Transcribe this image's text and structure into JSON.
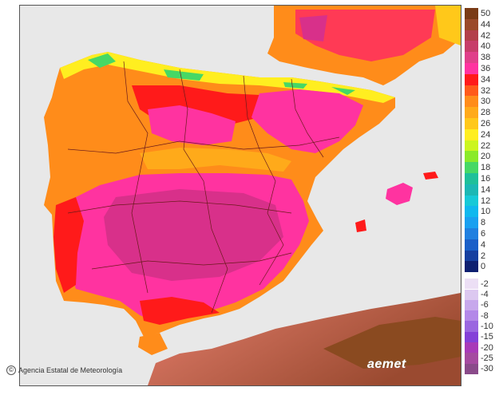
{
  "credit": {
    "symbol": "©",
    "text": "Agencia Estatal de Meteorología"
  },
  "logo": "aemet",
  "legend": {
    "positive": [
      {
        "label": "50",
        "color": "#7a3b16"
      },
      {
        "label": "44",
        "color": "#9b4a2a"
      },
      {
        "label": "42",
        "color": "#b3404a"
      },
      {
        "label": "40",
        "color": "#c73e6a"
      },
      {
        "label": "38",
        "color": "#e0408a"
      },
      {
        "label": "36",
        "color": "#ff33a0"
      },
      {
        "label": "34",
        "color": "#ff1a1a"
      },
      {
        "label": "32",
        "color": "#ff5a1a"
      },
      {
        "label": "30",
        "color": "#ff8c1a"
      },
      {
        "label": "28",
        "color": "#ffaa1a"
      },
      {
        "label": "26",
        "color": "#ffc81a"
      },
      {
        "label": "24",
        "color": "#ffee20"
      },
      {
        "label": "22",
        "color": "#ccf51f"
      },
      {
        "label": "20",
        "color": "#8aea2a"
      },
      {
        "label": "18",
        "color": "#46d865"
      },
      {
        "label": "16",
        "color": "#1fc09a"
      },
      {
        "label": "14",
        "color": "#1cb8b4"
      },
      {
        "label": "12",
        "color": "#17c9d7"
      },
      {
        "label": "10",
        "color": "#10b8ee"
      },
      {
        "label": "8",
        "color": "#1aa0f0"
      },
      {
        "label": "6",
        "color": "#2080e0"
      },
      {
        "label": "4",
        "color": "#1a5fc8"
      },
      {
        "label": "2",
        "color": "#163fa0"
      },
      {
        "label": "0",
        "color": "#0d1f70"
      }
    ],
    "negative": [
      {
        "label": "-2",
        "color": "#ecdff5"
      },
      {
        "label": "-4",
        "color": "#dcc8f0"
      },
      {
        "label": "-6",
        "color": "#c7a8ec"
      },
      {
        "label": "-8",
        "color": "#b388e8"
      },
      {
        "label": "-10",
        "color": "#9a66e0"
      },
      {
        "label": "-15",
        "color": "#8440d8"
      },
      {
        "label": "-20",
        "color": "#a83ab8"
      },
      {
        "label": "-25",
        "color": "#a54aa0"
      },
      {
        "label": "-30",
        "color": "#8a4a8a"
      }
    ]
  }
}
